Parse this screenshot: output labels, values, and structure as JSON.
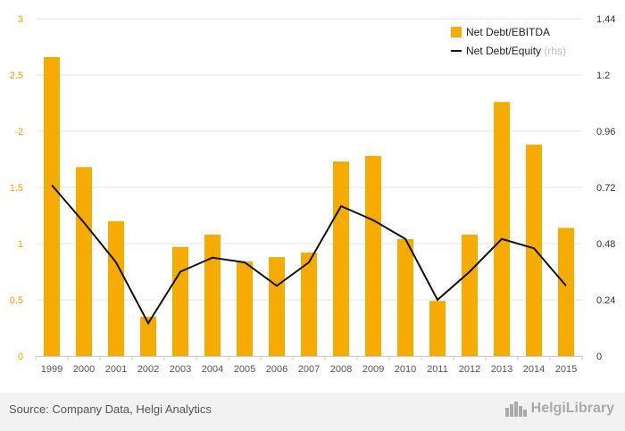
{
  "chart_data": {
    "type": "bar",
    "categories": [
      "1999",
      "2000",
      "2001",
      "2002",
      "2003",
      "2004",
      "2005",
      "2006",
      "2007",
      "2008",
      "2009",
      "2010",
      "2011",
      "2012",
      "2013",
      "2014",
      "2015"
    ],
    "series": [
      {
        "name": "Net Debt/EBITDA",
        "type": "bar",
        "axis": "left",
        "color": "#f5ab00",
        "values": [
          2.66,
          1.68,
          1.2,
          0.35,
          0.97,
          1.08,
          0.84,
          0.88,
          0.92,
          1.73,
          1.78,
          1.04,
          0.49,
          1.08,
          2.26,
          1.88,
          1.14
        ]
      },
      {
        "name": "Net Debt/Equity",
        "type": "line",
        "axis": "right",
        "color": "#111111",
        "values": [
          0.73,
          0.57,
          0.4,
          0.14,
          0.36,
          0.42,
          0.4,
          0.3,
          0.4,
          0.64,
          0.58,
          0.5,
          0.24,
          0.36,
          0.5,
          0.46,
          0.3
        ]
      }
    ],
    "legend": [
      {
        "label": "Net Debt/EBITDA",
        "note": ""
      },
      {
        "label": "Net Debt/Equity",
        "note": "(rhs)"
      }
    ],
    "y_left": {
      "ylim": [
        0,
        3
      ],
      "ticks": [
        "0",
        "0.5",
        "1",
        "1.5",
        "2",
        "2.5",
        "3"
      ],
      "color": "#e8a500"
    },
    "y_right": {
      "ylim": [
        0,
        1.44
      ],
      "ticks": [
        "0",
        "0.24",
        "0.48",
        "0.72",
        "0.96",
        "1.2",
        "1.44"
      ]
    },
    "grid": true,
    "legend_position": "top-right"
  },
  "footer": {
    "source": "Source: Company Data, Helgi Analytics",
    "brand": "HelgiLibrary",
    "brand_icon": "city-skyline-icon"
  }
}
